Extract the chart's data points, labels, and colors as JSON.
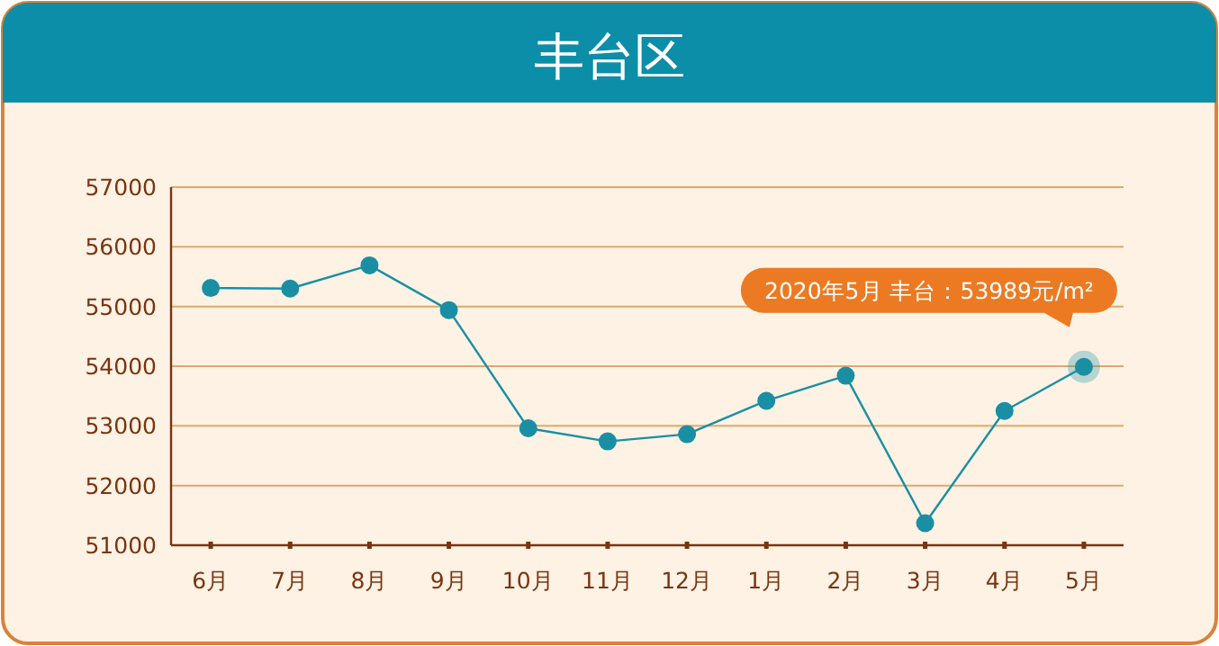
{
  "chart_data": {
    "type": "line",
    "title": "丰台区",
    "categories": [
      "6月",
      "7月",
      "8月",
      "9月",
      "10月",
      "11月",
      "12月",
      "1月",
      "2月",
      "3月",
      "4月",
      "5月"
    ],
    "series": [
      {
        "color": "#1a8fa3",
        "values": [
          55310,
          55300,
          55690,
          54940,
          52960,
          52740,
          52860,
          53420,
          53840,
          51370,
          53250,
          53989
        ]
      }
    ],
    "ylim": [
      51000,
      57000
    ],
    "yticks": [
      51000,
      52000,
      53000,
      54000,
      55000,
      56000,
      57000
    ],
    "grid": "y",
    "marker": "circle",
    "annotations": [
      {
        "text": "2020年5月 丰台：53989元/m²",
        "x": "5月",
        "y": 53989
      }
    ]
  }
}
